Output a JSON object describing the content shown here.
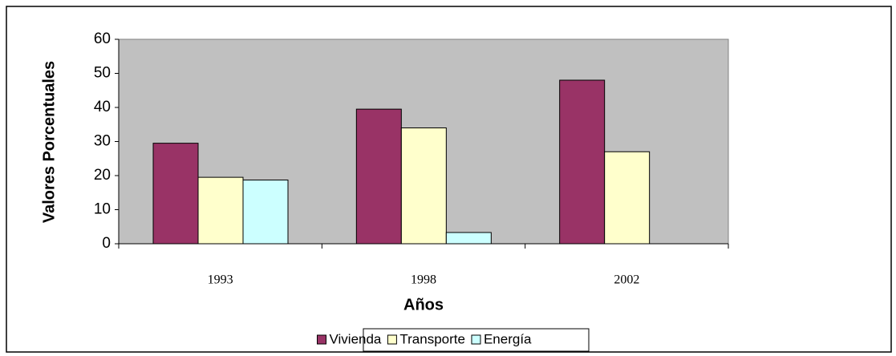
{
  "chart_data": {
    "type": "bar",
    "categories": [
      "1993",
      "1998",
      "2002"
    ],
    "series": [
      {
        "name": "Vivienda",
        "color": "#993366",
        "values": [
          29.5,
          39.5,
          48
        ]
      },
      {
        "name": "Transporte",
        "color": "#ffffcc",
        "values": [
          19.5,
          34,
          27
        ]
      },
      {
        "name": "Energía",
        "color": "#ccffff",
        "values": [
          18.7,
          3.3,
          null
        ]
      }
    ],
    "x_label": "Años",
    "y_label": "Valores Porcentuales",
    "ylim": [
      0,
      60
    ],
    "yticks": [
      0,
      10,
      20,
      30,
      40,
      50,
      60
    ],
    "legend": "bottom",
    "plot_background": "#c0c0c0"
  }
}
